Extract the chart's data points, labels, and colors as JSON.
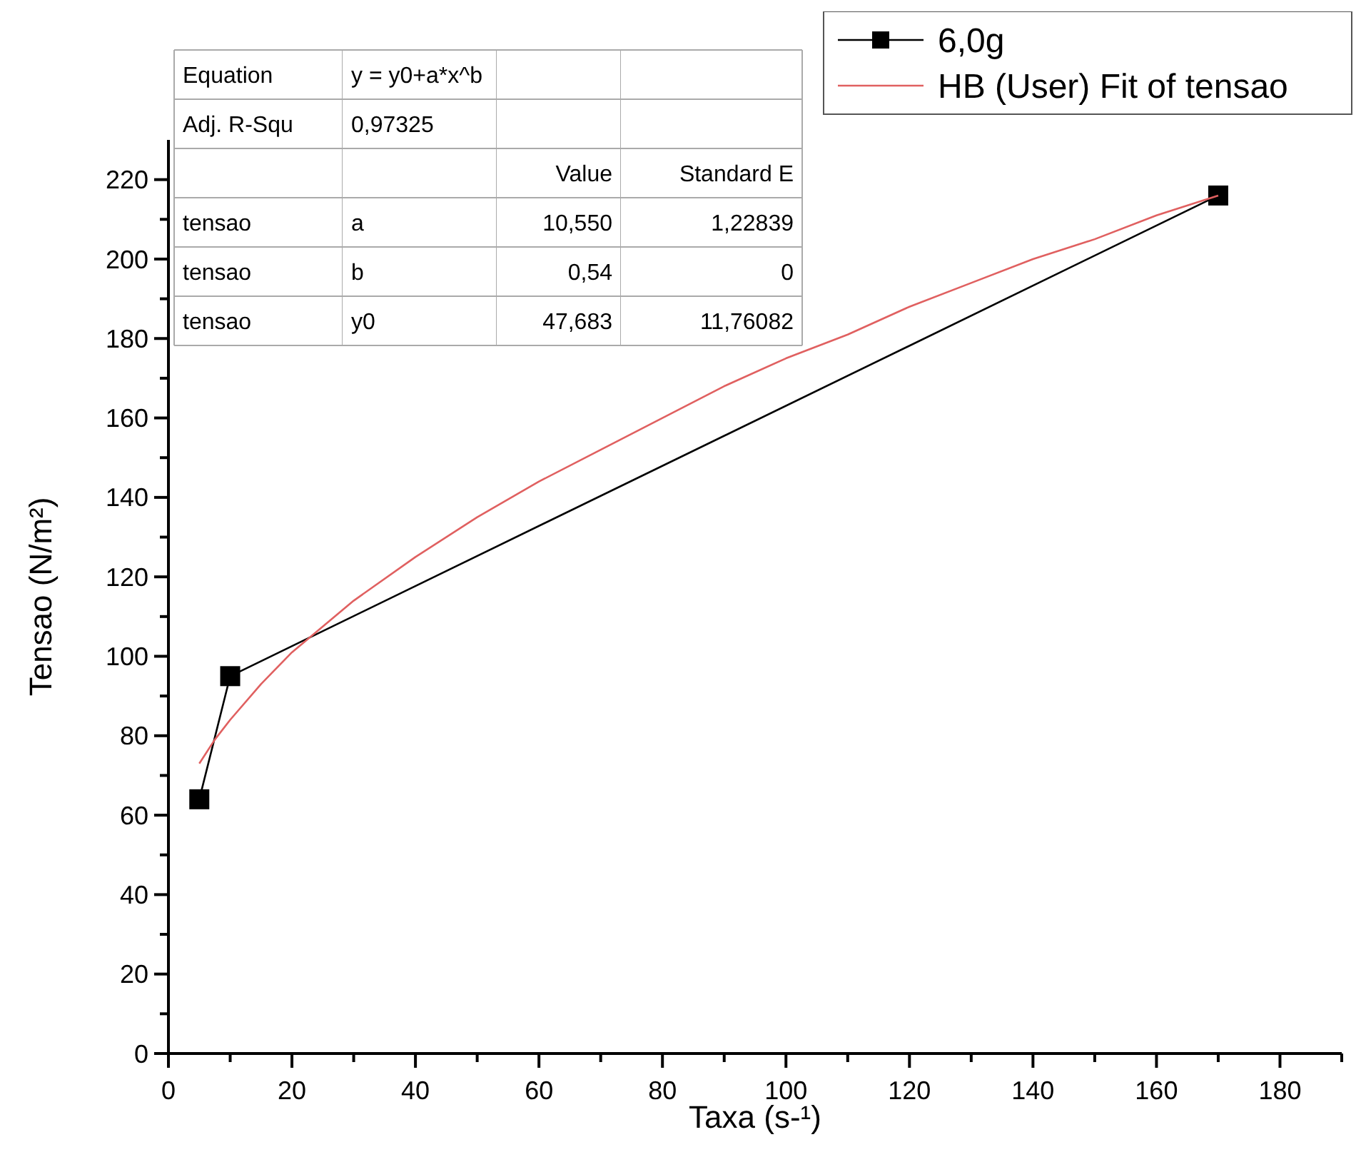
{
  "chart_data": {
    "type": "line",
    "xlabel": "Taxa (s-¹)",
    "ylabel": "Tensao (N/m²)",
    "xlim": [
      0,
      190
    ],
    "ylim": [
      0,
      230
    ],
    "xticks": [
      0,
      {
        "value": 10,
        "label": null
      },
      20,
      {
        "value": 30,
        "label": null
      },
      40,
      {
        "value": 50,
        "label": null
      },
      60,
      {
        "value": 70,
        "label": null
      },
      80,
      {
        "value": 90,
        "label": null
      },
      100,
      {
        "value": 110,
        "label": null
      },
      120,
      {
        "value": 130,
        "label": null
      },
      140,
      {
        "value": 150,
        "label": null
      },
      160,
      {
        "value": 170,
        "label": null
      },
      180,
      {
        "value": 190,
        "label": null
      }
    ],
    "yticks": [
      0,
      {
        "value": 10,
        "label": null
      },
      20,
      {
        "value": 30,
        "label": null
      },
      40,
      {
        "value": 50,
        "label": null
      },
      60,
      {
        "value": 70,
        "label": null
      },
      80,
      {
        "value": 90,
        "label": null
      },
      100,
      {
        "value": 110,
        "label": null
      },
      120,
      {
        "value": 130,
        "label": null
      },
      140,
      {
        "value": 150,
        "label": null
      },
      160,
      {
        "value": 170,
        "label": null
      },
      180,
      {
        "value": 190,
        "label": null
      },
      200,
      {
        "value": 210,
        "label": null
      },
      220
    ],
    "legend": "top right",
    "series": [
      {
        "name": "6,0g",
        "color": "#000000",
        "marker": "square",
        "x": [
          5,
          10,
          170
        ],
        "values": [
          64,
          95,
          216
        ]
      },
      {
        "name": "HB (User) Fit of tensao",
        "color": "#e06060",
        "marker": "none",
        "x": [
          5,
          7.5,
          10,
          15,
          20,
          30,
          40,
          50,
          60,
          70,
          80,
          90,
          100,
          110,
          120,
          130,
          140,
          150,
          160,
          170
        ],
        "values": [
          73,
          79,
          84,
          93,
          101,
          114,
          125,
          135,
          144,
          152,
          160,
          168,
          175,
          181,
          188,
          194,
          200,
          205,
          211,
          216
        ]
      }
    ],
    "annotations": [
      "Equation\ty = y0+a*x^b\t\t",
      "Adj. R-Squ\t0,97325\t\t",
      "\t\tValue\tStandard E",
      "tensao\ta\t10,550\t1,22839",
      "tensao\tb\t0,54\t0",
      "tensao\ty0\t47,683\t11,76082"
    ]
  }
}
